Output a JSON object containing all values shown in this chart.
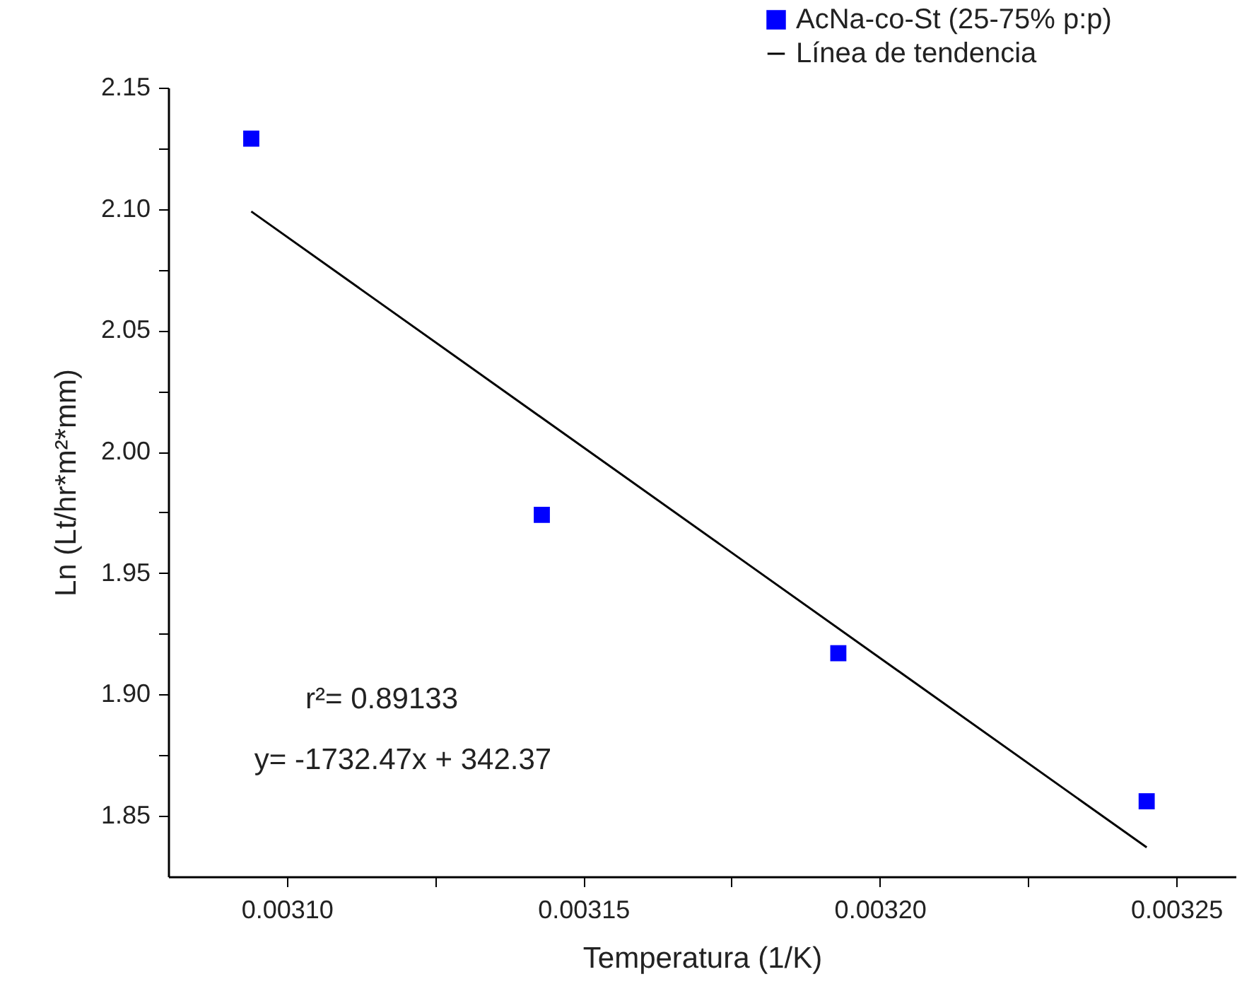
{
  "chart_data": {
    "type": "scatter",
    "xlabel": "Temperatura (1/K)",
    "ylabel": "Ln (Lt/hr*m²*mm)",
    "xlim": [
      0.00308,
      0.00326
    ],
    "xticks": [
      {
        "value": 0.0031,
        "label": "0.00310"
      },
      {
        "value": 0.003125,
        "label": null
      },
      {
        "value": 0.00315,
        "label": "0.00315"
      },
      {
        "value": 0.003175,
        "label": null
      },
      {
        "value": 0.0032,
        "label": "0.00320"
      },
      {
        "value": 0.003225,
        "label": null
      },
      {
        "value": 0.00325,
        "label": "0.00325"
      }
    ],
    "ylim": [
      1.825,
      2.15
    ],
    "yticks": [
      {
        "value": 1.85,
        "label": "1.85"
      },
      {
        "value": 1.875,
        "label": null
      },
      {
        "value": 1.9,
        "label": "1.90"
      },
      {
        "value": 1.925,
        "label": null
      },
      {
        "value": 1.95,
        "label": "1.95"
      },
      {
        "value": 1.975,
        "label": null
      },
      {
        "value": 2.0,
        "label": "2.00"
      },
      {
        "value": 2.025,
        "label": null
      },
      {
        "value": 2.05,
        "label": "2.05"
      },
      {
        "value": 2.075,
        "label": null
      },
      {
        "value": 2.1,
        "label": "2.10"
      },
      {
        "value": 2.125,
        "label": null
      },
      {
        "value": 2.15,
        "label": "2.15"
      }
    ],
    "series": [
      {
        "name": "AcNa-co-St (25-75% p:p)",
        "marker": "square",
        "color": "#0000ff",
        "x": [
          0.003094,
          0.003143,
          0.003193,
          0.003245
        ],
        "values": [
          2.129,
          1.974,
          1.917,
          1.856
        ]
      },
      {
        "name": "Línea de tendencia",
        "type": "line",
        "color": "#000000",
        "line_style": "solid",
        "x": [
          0.003094,
          0.003245
        ],
        "values": [
          2.099,
          1.837
        ]
      }
    ],
    "annotations": [
      "r²= 0.89133",
      "y= -1732.47x + 342.37"
    ],
    "legend": "top right"
  }
}
